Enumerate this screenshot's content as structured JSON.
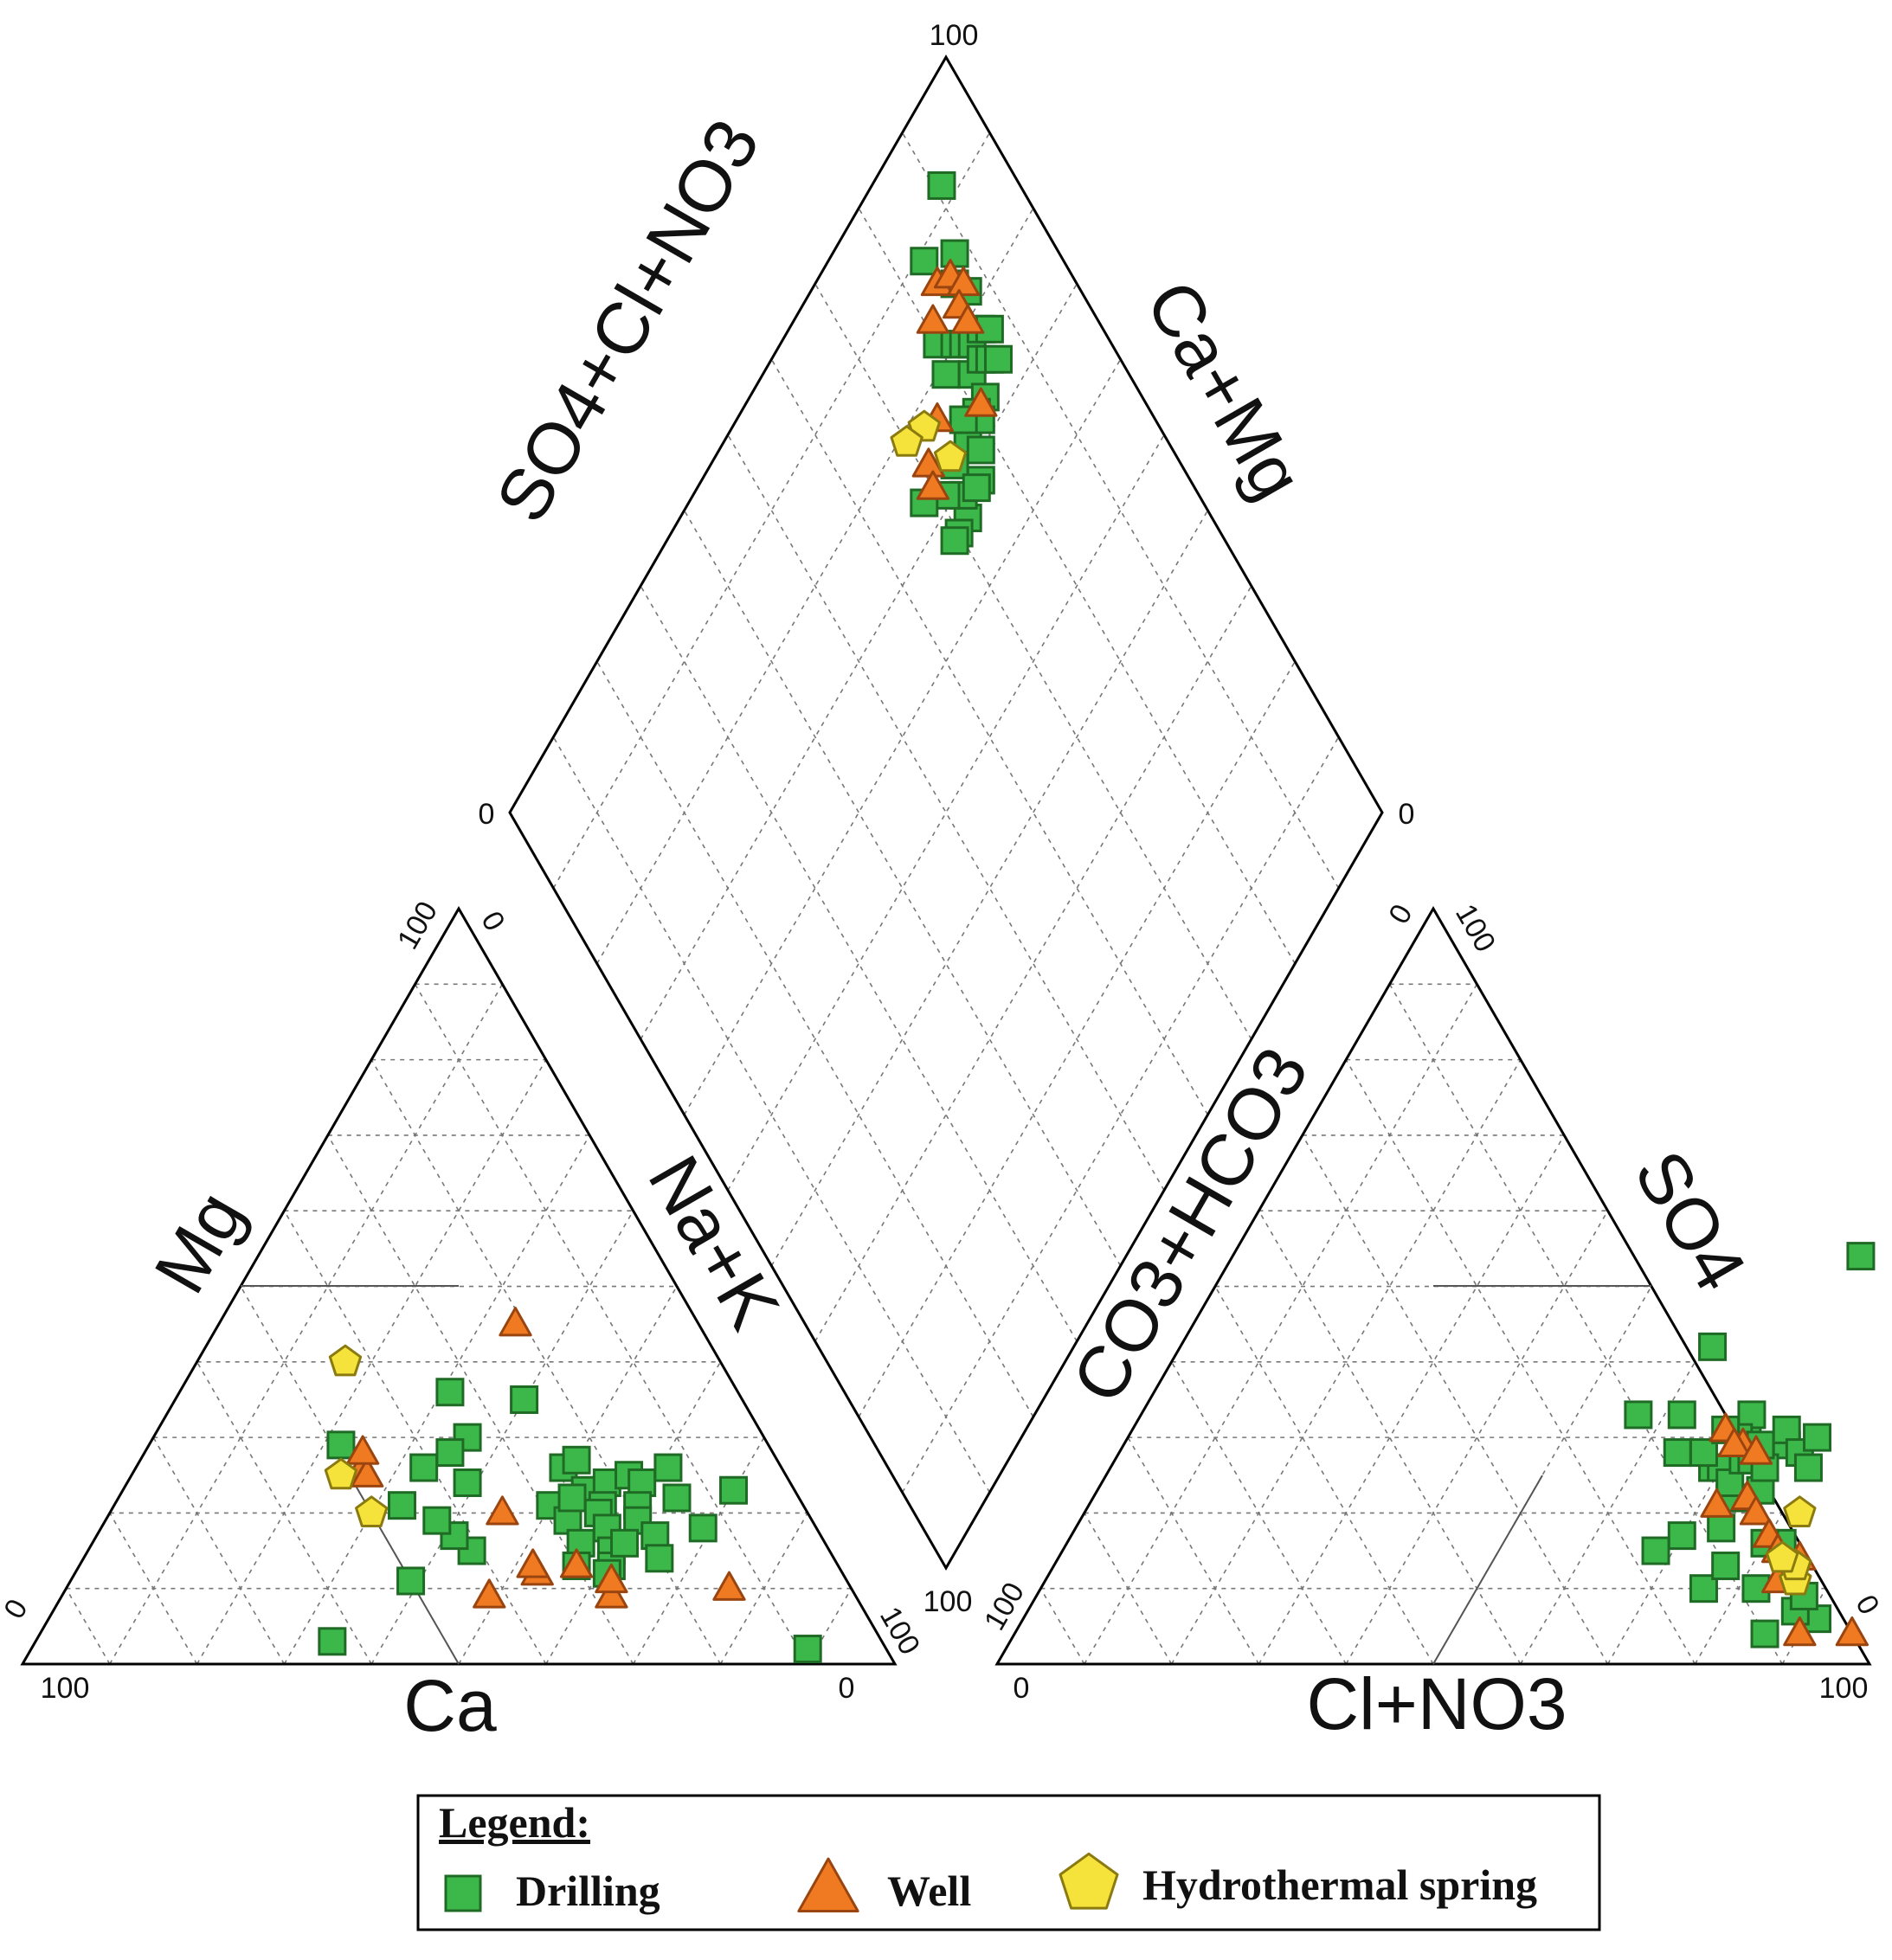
{
  "chart_data": {
    "type": "scatter",
    "subtype": "piper-trilinear",
    "title": "",
    "cation_triangle": {
      "axis_labels": {
        "left": "Mg",
        "right": "Na+K",
        "bottom": "Ca"
      },
      "tick_labels": {
        "apex_left": "100",
        "apex_right": "0",
        "bottom_left": "100",
        "bottom_right": "0",
        "left_base": "0",
        "right_base": "100"
      }
    },
    "anion_triangle": {
      "axis_labels": {
        "left": "CO3+HCO3",
        "right": "SO4",
        "bottom": "Cl+NO3"
      },
      "tick_labels": {
        "apex_left": "0",
        "apex_right": "100",
        "bottom_left": "0",
        "bottom_right": "100",
        "left_base": "100",
        "right_base": "0"
      }
    },
    "diamond": {
      "axis_labels": {
        "upper_left": "SO4+Cl+NO3",
        "upper_right": "Ca+Mg"
      },
      "tick_labels": {
        "top": "100",
        "left": "0",
        "right": "0",
        "bottom": "100"
      }
    },
    "legend": {
      "title": "Legend:",
      "position": "bottom-center"
    },
    "series": [
      {
        "name": "Drilling",
        "marker": "square",
        "color": "#3cb84a",
        "edge": "#1f6b25",
        "cation_points": [
          [
            2,
            89
          ],
          [
            29,
            22
          ],
          [
            11,
            39
          ],
          [
            3,
            34
          ],
          [
            36,
            31
          ],
          [
            35,
            40
          ],
          [
            30,
            36
          ],
          [
            26,
            33
          ],
          [
            15,
            44
          ],
          [
            17,
            41
          ],
          [
            21,
            50
          ],
          [
            26,
            49
          ],
          [
            23,
            53
          ],
          [
            27,
            50
          ],
          [
            24,
            55
          ],
          [
            19,
            53
          ],
          [
            22,
            52
          ],
          [
            21,
            56
          ],
          [
            25,
            57
          ],
          [
            16,
            56
          ],
          [
            20,
            56
          ],
          [
            24,
            59
          ],
          [
            26,
            61
          ],
          [
            13,
            57
          ],
          [
            18,
            58
          ],
          [
            21,
            60
          ],
          [
            15,
            60
          ],
          [
            13,
            61
          ],
          [
            19,
            61
          ],
          [
            17,
            64
          ],
          [
            14,
            66
          ],
          [
            12,
            61
          ],
          [
            16,
            61
          ],
          [
            22,
            64
          ],
          [
            23,
            70
          ],
          [
            24,
            39
          ],
          [
            19,
            38
          ],
          [
            21,
            33
          ],
          [
            28,
            35
          ],
          [
            18,
            69
          ]
        ],
        "anion_points": [
          [
            72,
            54
          ],
          [
            91,
            6
          ],
          [
            88,
            7
          ],
          [
            86,
            4
          ],
          [
            88,
            9
          ],
          [
            82,
            10
          ],
          [
            76,
            10
          ],
          [
            74,
            18
          ],
          [
            77,
            13
          ],
          [
            82,
            16
          ],
          [
            80,
            16
          ],
          [
            70,
            17
          ],
          [
            64,
            28
          ],
          [
            68,
            15
          ],
          [
            74,
            22
          ],
          [
            73,
            22
          ],
          [
            76,
            23
          ],
          [
            69,
            26
          ],
          [
            70,
            26
          ],
          [
            74,
            27
          ],
          [
            72,
            24
          ],
          [
            71,
            30
          ],
          [
            72,
            27
          ],
          [
            67,
            28
          ],
          [
            73,
            27
          ],
          [
            76,
            29
          ],
          [
            75,
            31
          ],
          [
            78,
            28
          ],
          [
            80,
            26
          ],
          [
            70,
            33
          ],
          [
            70,
            30
          ],
          [
            68,
            31
          ],
          [
            79,
            30
          ],
          [
            61,
            42
          ],
          [
            57,
            33
          ],
          [
            62,
            33
          ],
          [
            75,
            26
          ],
          [
            73,
            29
          ]
        ],
        "diamond_points": [
          [
            91,
            92
          ],
          [
            84,
            89
          ],
          [
            88,
            86
          ],
          [
            86,
            84
          ],
          [
            80,
            82
          ],
          [
            87,
            82
          ],
          [
            82,
            80
          ],
          [
            83,
            79
          ],
          [
            79,
            79
          ],
          [
            84,
            78
          ],
          [
            86,
            78
          ],
          [
            82,
            76
          ],
          [
            87,
            77
          ],
          [
            84,
            76
          ],
          [
            85,
            75
          ],
          [
            86,
            74
          ],
          [
            82,
            73
          ],
          [
            80,
            73
          ],
          [
            77,
            72
          ],
          [
            74,
            72
          ],
          [
            78,
            70
          ],
          [
            76,
            68
          ],
          [
            72,
            67
          ],
          [
            73,
            69
          ],
          [
            75,
            68
          ],
          [
            70,
            67
          ],
          [
            69,
            67
          ],
          [
            71,
            71
          ],
          [
            68,
            73
          ],
          [
            80,
            72
          ],
          [
            78,
            74
          ]
        ]
      },
      {
        "name": "Well",
        "marker": "triangle",
        "color": "#f07a22",
        "edge": "#9a4510",
        "cation_points": [
          [
            10,
            76
          ],
          [
            9,
            63
          ],
          [
            13,
            57
          ],
          [
            11,
            62
          ],
          [
            12,
            53
          ],
          [
            13,
            52
          ],
          [
            9,
            49
          ],
          [
            26,
            26
          ],
          [
            25,
            27
          ],
          [
            45,
            34
          ],
          [
            28,
            25
          ],
          [
            20,
            45
          ]
        ],
        "anion_points": [
          [
            71,
            29
          ],
          [
            75,
            22
          ],
          [
            77,
            20
          ],
          [
            80,
            17
          ],
          [
            82,
            15
          ],
          [
            84,
            11
          ],
          [
            90,
            4
          ],
          [
            96,
            4
          ],
          [
            72,
            21
          ],
          [
            68,
            31
          ],
          [
            70,
            29
          ],
          [
            85,
            14
          ],
          [
            73,
            28
          ]
        ],
        "diamond_points": [
          [
            84,
            86
          ],
          [
            86,
            85
          ],
          [
            87,
            83
          ],
          [
            85,
            82
          ],
          [
            81,
            84
          ],
          [
            85,
            80
          ],
          [
            75,
            77
          ],
          [
            81,
            73
          ],
          [
            71,
            75
          ],
          [
            70,
            73
          ]
        ]
      },
      {
        "name": "Hydrothermal spring",
        "marker": "pentagon",
        "color": "#f5e23a",
        "edge": "#8a7a10",
        "cation_points": [
          [
            20,
            30
          ],
          [
            25,
            24
          ],
          [
            40,
            17
          ]
        ],
        "anion_points": [
          [
            82,
            20
          ],
          [
            86,
            11
          ],
          [
            85,
            13
          ],
          [
            83,
            14
          ]
        ],
        "diamond_points": [
          [
            74,
            73
          ],
          [
            73,
            78
          ],
          [
            70,
            79
          ]
        ]
      }
    ]
  }
}
